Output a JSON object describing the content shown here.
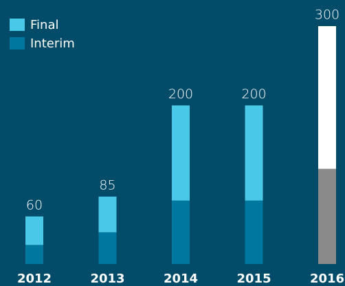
{
  "chart_data": {
    "type": "stacked_bar",
    "categories": [
      "2012",
      "2013",
      "2014",
      "2015",
      "2016"
    ],
    "series": [
      {
        "name": "Interim",
        "color": "#00779e",
        "colors": [
          "#00779e",
          "#00779e",
          "#00779e",
          "#00779e",
          "#8a8a8a"
        ],
        "values": [
          24,
          40,
          80,
          80,
          120
        ]
      },
      {
        "name": "Final",
        "color": "#4ac8e8",
        "colors": [
          "#4ac8e8",
          "#4ac8e8",
          "#4ac8e8",
          "#4ac8e8",
          "#ffffff"
        ],
        "values": [
          36,
          45,
          120,
          120,
          180
        ]
      }
    ],
    "totals": [
      60,
      85,
      200,
      200,
      300
    ],
    "ylim": [
      0,
      300
    ],
    "legend": "top-left"
  }
}
